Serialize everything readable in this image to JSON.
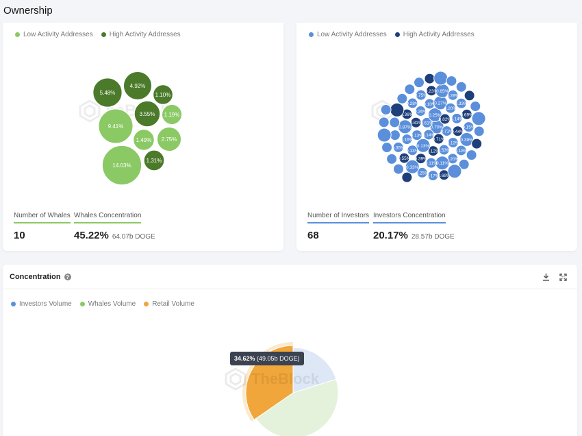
{
  "page": {
    "title": "Ownership"
  },
  "whales": {
    "legend": [
      {
        "label": "Low Activity Addresses",
        "color": "#8bc965"
      },
      {
        "label": "High Activity Addresses",
        "color": "#4a7a2a"
      }
    ],
    "bubbles": [
      {
        "label": "5.48%",
        "value": 5.48,
        "activity": "high"
      },
      {
        "label": "4.92%",
        "value": 4.92,
        "activity": "high"
      },
      {
        "label": "1.10%",
        "value": 1.1,
        "activity": "high"
      },
      {
        "label": "3.55%",
        "value": 3.55,
        "activity": "high"
      },
      {
        "label": "1.19%",
        "value": 1.19,
        "activity": "low"
      },
      {
        "label": "9.41%",
        "value": 9.41,
        "activity": "low"
      },
      {
        "label": "1.49%",
        "value": 1.49,
        "activity": "low"
      },
      {
        "label": "2.75%",
        "value": 2.75,
        "activity": "low"
      },
      {
        "label": "1.31%",
        "value": 1.31,
        "activity": "high"
      },
      {
        "label": "14.03%",
        "value": 14.03,
        "activity": "low"
      }
    ],
    "metrics": {
      "count_label": "Number of Whales",
      "count_value": "10",
      "conc_label": "Whales Concentration",
      "conc_value": "45.22%",
      "conc_sub": "64.07b DOGE"
    }
  },
  "investors": {
    "legend": [
      {
        "label": "Low Activity Addresses",
        "color": "#5b8fdb"
      },
      {
        "label": "High Activity Addresses",
        "color": "#1e3f7a"
      }
    ],
    "bubble_labels": [
      "0.70%",
      "0.71%",
      "0.71%",
      "0.14%",
      "0.61%",
      "0.25%",
      "0.82%",
      "0.13%",
      "0.53%",
      "0.12%",
      "0.13%",
      "0.13%",
      "0.81%",
      "0.26%",
      "0.10%",
      "0.27%",
      "0.20%",
      "0.14%",
      "0.44%",
      "0.20%",
      "0.11%",
      "0.11%",
      "0.39%",
      "0.13%",
      "0.16%",
      "0.87%",
      "0.36%",
      "0.28%",
      "0.75%",
      "0.23%",
      "0.65%",
      "0.28%",
      "0.33%",
      "0.69%",
      "0.15%",
      "0.39%",
      "0.18%",
      "0.68%",
      "0.17%",
      "0.25%",
      "0.33%",
      "0.55%",
      "0.35%"
    ],
    "metrics": {
      "count_label": "Number of Investors",
      "count_value": "68",
      "conc_label": "Investors Concentration",
      "conc_value": "20.17%",
      "conc_sub": "28.57b DOGE"
    }
  },
  "concentration": {
    "title": "Concentration",
    "legend": [
      {
        "label": "Investors Volume",
        "color": "#5b8fdb"
      },
      {
        "label": "Whales Volume",
        "color": "#8bc965"
      },
      {
        "label": "Retail Volume",
        "color": "#f0a63a"
      }
    ],
    "tooltip_value": "34.62%",
    "tooltip_sub": "(49.05b DOGE)",
    "watermark": "TheBlock"
  },
  "chart_data": {
    "type": "pie",
    "categories": [
      "Investors Volume",
      "Whales Volume",
      "Retail Volume"
    ],
    "values": [
      20.17,
      45.22,
      34.62
    ],
    "colors": [
      "#dde7f6",
      "#e4f2dc",
      "#f0a63a"
    ]
  }
}
